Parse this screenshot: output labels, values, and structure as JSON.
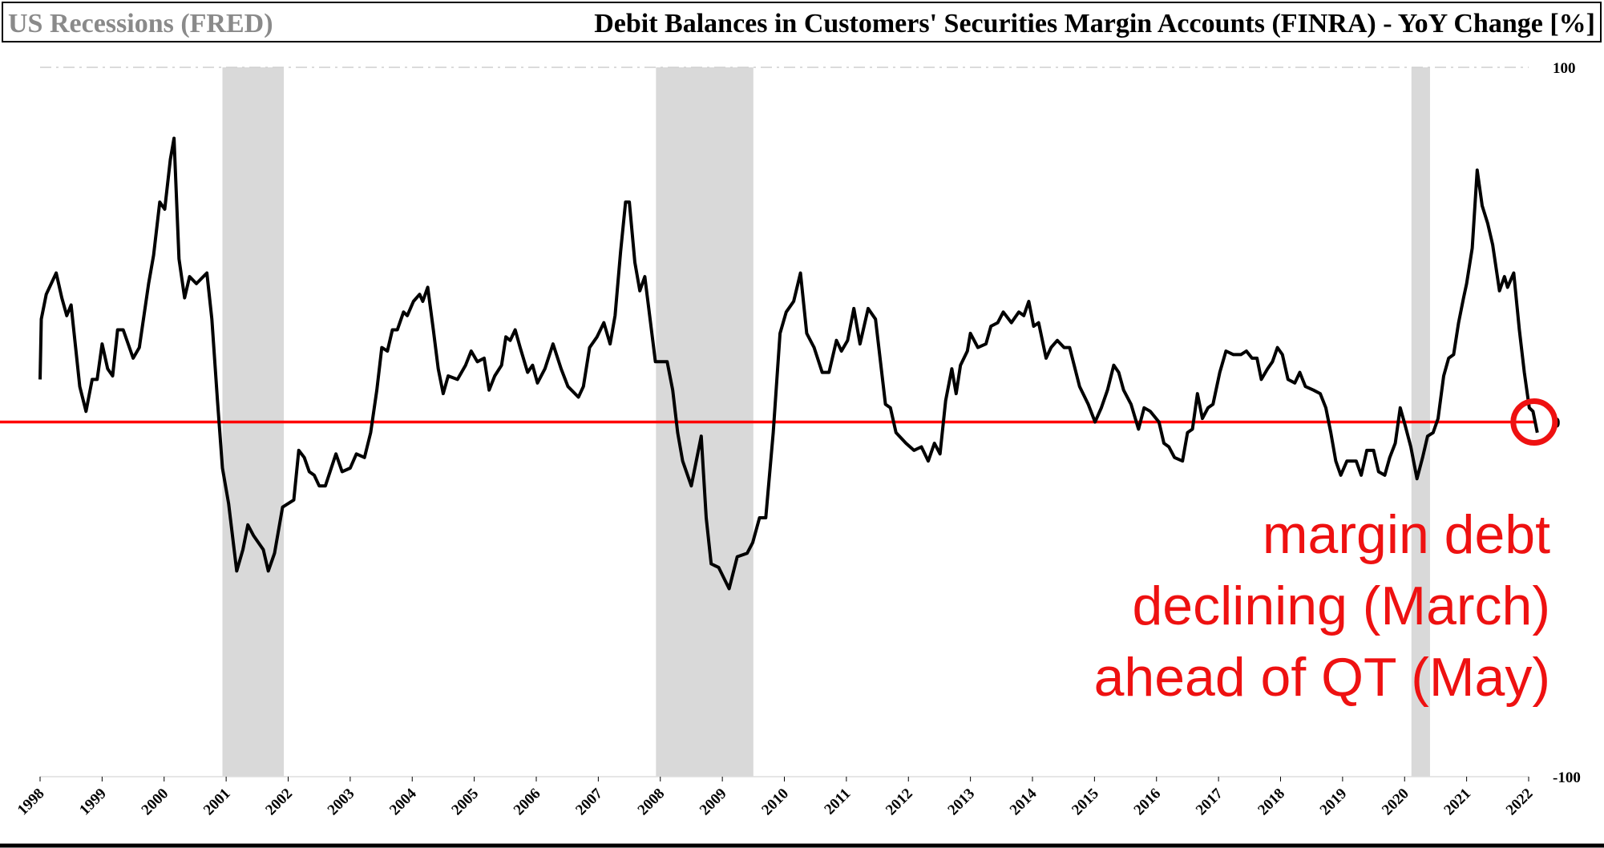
{
  "chart_data": {
    "type": "line",
    "title": "Debit Balances in Customers' Securities Margin Accounts (FINRA) - YoY Change [%]",
    "recessions": {
      "name": "US Recessions (FRED)",
      "color": "#d9d9d9",
      "spans": [
        [
          2000.94,
          2001.93
        ],
        [
          2007.93,
          2009.5
        ],
        [
          2020.11,
          2020.41
        ]
      ]
    },
    "x": [
      1998.0,
      1998.02,
      1998.1,
      1998.26,
      1998.35,
      1998.43,
      1998.5,
      1998.64,
      1998.74,
      1998.84,
      1998.92,
      1999.0,
      1999.09,
      1999.17,
      1999.25,
      1999.34,
      1999.5,
      1999.6,
      1999.75,
      1999.83,
      1999.93,
      2000.01,
      2000.1,
      2000.16,
      2000.24,
      2000.33,
      2000.41,
      2000.52,
      2000.69,
      2000.77,
      2000.86,
      2000.94,
      2001.04,
      2001.17,
      2001.27,
      2001.35,
      2001.44,
      2001.6,
      2001.68,
      2001.78,
      2001.91,
      2002.09,
      2002.17,
      2002.26,
      2002.34,
      2002.42,
      2002.5,
      2002.6,
      2002.77,
      2002.87,
      2003.0,
      2003.1,
      2003.23,
      2003.33,
      2003.43,
      2003.51,
      2003.6,
      2003.68,
      2003.76,
      2003.86,
      2003.92,
      2004.02,
      2004.12,
      2004.17,
      2004.25,
      2004.34,
      2004.42,
      2004.5,
      2004.58,
      2004.73,
      2004.86,
      2004.95,
      2005.05,
      2005.16,
      2005.24,
      2005.33,
      2005.44,
      2005.51,
      2005.58,
      2005.66,
      2005.74,
      2005.86,
      2005.94,
      2006.02,
      2006.14,
      2006.27,
      2006.4,
      2006.51,
      2006.68,
      2006.76,
      2006.86,
      2006.98,
      2007.09,
      2007.19,
      2007.27,
      2007.36,
      2007.44,
      2007.5,
      2007.59,
      2007.67,
      2007.75,
      2007.92,
      2008.11,
      2008.2,
      2008.28,
      2008.36,
      2008.5,
      2008.66,
      2008.74,
      2008.82,
      2008.94,
      2009.11,
      2009.24,
      2009.4,
      2009.49,
      2009.6,
      2009.7,
      2009.82,
      2009.93,
      2010.03,
      2010.15,
      2010.26,
      2010.36,
      2010.48,
      2010.61,
      2010.72,
      2010.84,
      2010.92,
      2011.02,
      2011.12,
      2011.22,
      2011.35,
      2011.47,
      2011.63,
      2011.71,
      2011.8,
      2011.96,
      2012.09,
      2012.21,
      2012.32,
      2012.42,
      2012.51,
      2012.6,
      2012.7,
      2012.77,
      2012.84,
      2012.95,
      2013.0,
      2013.12,
      2013.25,
      2013.33,
      2013.44,
      2013.53,
      2013.66,
      2013.78,
      2013.86,
      2013.94,
      2014.02,
      2014.1,
      2014.22,
      2014.3,
      2014.4,
      2014.51,
      2014.6,
      2014.76,
      2014.9,
      2015.01,
      2015.11,
      2015.21,
      2015.31,
      2015.39,
      2015.47,
      2015.59,
      2015.71,
      2015.8,
      2015.9,
      2016.04,
      2016.12,
      2016.2,
      2016.29,
      2016.42,
      2016.5,
      2016.58,
      2016.66,
      2016.74,
      2016.83,
      2016.91,
      2017.02,
      2017.12,
      2017.24,
      2017.36,
      2017.45,
      2017.54,
      2017.62,
      2017.69,
      2017.79,
      2017.87,
      2017.95,
      2018.03,
      2018.12,
      2018.23,
      2018.31,
      2018.4,
      2018.53,
      2018.64,
      2018.73,
      2018.81,
      2018.89,
      2018.97,
      2019.07,
      2019.22,
      2019.3,
      2019.39,
      2019.5,
      2019.58,
      2019.68,
      2019.76,
      2019.85,
      2019.93,
      2020.01,
      2020.1,
      2020.2,
      2020.29,
      2020.37,
      2020.46,
      2020.54,
      2020.63,
      2020.71,
      2020.79,
      2020.87,
      2020.95,
      2021.0,
      2021.09,
      2021.17,
      2021.25,
      2021.34,
      2021.42,
      2021.53,
      2021.61,
      2021.66,
      2021.76,
      2021.85,
      2021.93,
      2022.01,
      2022.07,
      2022.14
    ],
    "series": [
      {
        "color": "#000000",
        "values": [
          12,
          29,
          36,
          42,
          35,
          30,
          33,
          10,
          3,
          12,
          12,
          22,
          15,
          13,
          26,
          26,
          18,
          21,
          39,
          47,
          62,
          60,
          74,
          80,
          46,
          35,
          41,
          39,
          42,
          29,
          6,
          -13,
          -23,
          -42,
          -36,
          -29,
          -32,
          -36,
          -42,
          -37,
          -24,
          -22,
          -8,
          -10,
          -14,
          -15,
          -18,
          -18,
          -9,
          -14,
          -13,
          -9,
          -10,
          -3,
          9,
          21,
          20,
          26,
          26,
          31,
          30,
          34,
          36,
          34,
          38,
          26,
          15,
          8,
          13,
          12,
          16,
          20,
          17,
          18,
          9,
          13,
          16,
          24,
          23,
          26,
          21,
          14,
          16,
          11,
          15,
          22,
          15,
          10,
          7,
          10,
          21,
          24,
          28,
          22,
          30,
          48,
          62,
          62,
          45,
          37,
          41,
          17,
          17,
          9,
          -3,
          -11,
          -18,
          -4,
          -27,
          -40,
          -41,
          -47,
          -38,
          -37,
          -34,
          -27,
          -27,
          -3,
          25,
          31,
          34,
          42,
          25,
          21,
          14,
          14,
          23,
          20,
          23,
          32,
          22,
          32,
          29,
          5,
          4,
          -3,
          -6,
          -8,
          -7,
          -11,
          -6,
          -9,
          6,
          15,
          8,
          16,
          20,
          25,
          21,
          22,
          27,
          28,
          31,
          28,
          31,
          30,
          34,
          27,
          28,
          18,
          21,
          23,
          21,
          21,
          10,
          5,
          0,
          4,
          9,
          16,
          14,
          9,
          5,
          -2,
          4,
          3,
          0,
          -6,
          -7,
          -10,
          -11,
          -3,
          -2,
          8,
          1,
          4,
          5,
          14,
          20,
          19,
          19,
          20,
          18,
          18,
          12,
          15,
          17,
          21,
          19,
          12,
          11,
          14,
          10,
          9,
          8,
          4,
          -3,
          -11,
          -15,
          -11,
          -11,
          -15,
          -8,
          -8,
          -14,
          -15,
          -10,
          -6,
          4,
          -1,
          -7,
          -16,
          -10,
          -4,
          -3,
          1,
          13,
          18,
          19,
          28,
          35,
          39,
          49,
          71,
          61,
          56,
          50,
          37,
          41,
          38,
          42,
          26,
          14,
          4,
          3,
          -3
        ]
      }
    ],
    "xlim": [
      1998,
      2022
    ],
    "xticks": [
      1998,
      1999,
      2000,
      2001,
      2002,
      2003,
      2004,
      2005,
      2006,
      2007,
      2008,
      2009,
      2010,
      2011,
      2012,
      2013,
      2014,
      2015,
      2016,
      2017,
      2018,
      2019,
      2020,
      2021,
      2022
    ],
    "ylim": [
      -100,
      100
    ],
    "yticks": [
      -100,
      0,
      100
    ],
    "zero_line_color": "#ff0000",
    "annotation": {
      "lines": [
        "margin debt",
        "declining (March)",
        "ahead of QT (May)"
      ],
      "color": "#ee1111"
    }
  }
}
